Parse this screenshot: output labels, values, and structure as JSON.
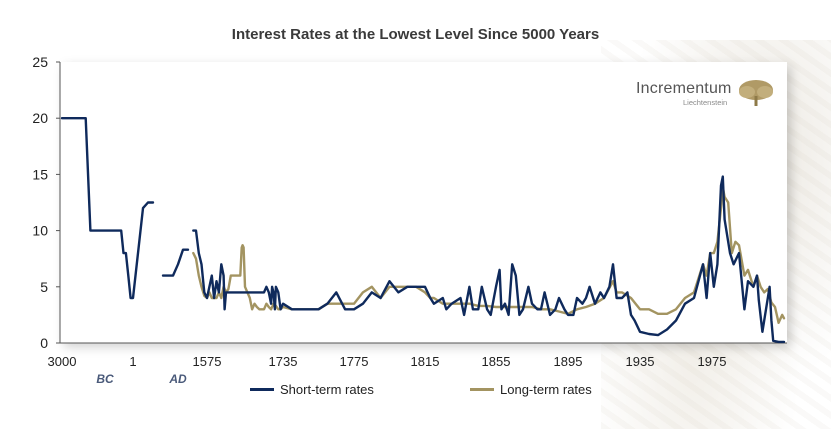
{
  "chart_data": {
    "type": "line",
    "title": "Interest Rates at the Lowest Level Since 5000 Years",
    "xlabel": "",
    "ylabel": "",
    "ylim": [
      0,
      25
    ],
    "y_ticks": [
      "0",
      "5",
      "10",
      "15",
      "20",
      "25"
    ],
    "x_tick_labels": [
      "3000",
      "1",
      "1575",
      "1735",
      "1775",
      "1815",
      "1855",
      "1895",
      "1935",
      "1975"
    ],
    "era_labels": [
      "BC",
      "AD"
    ],
    "grid": false,
    "legend_position": "bottom",
    "series": [
      {
        "name": "Short-term rates",
        "color": "#0f2a5c",
        "segments": [
          [
            [
              -3000,
              20
            ],
            [
              -2000,
              20
            ],
            [
              -1800,
              10
            ],
            [
              -500,
              10
            ],
            [
              -400,
              8
            ],
            [
              -300,
              8
            ],
            [
              -200,
              6
            ],
            [
              -100,
              4
            ],
            [
              0,
              4
            ],
            [
              50,
              8
            ],
            [
              100,
              12
            ],
            [
              150,
              12.5
            ],
            [
              200,
              12.5
            ]
          ],
          [
            [
              300,
              6
            ],
            [
              400,
              6
            ],
            [
              450,
              7
            ],
            [
              500,
              8.3
            ],
            [
              550,
              8.3
            ]
          ],
          [
            [
              1550,
              10
            ],
            [
              1555,
              10
            ],
            [
              1560,
              8
            ],
            [
              1565,
              7
            ],
            [
              1570,
              4.5
            ],
            [
              1575,
              4
            ],
            [
              1580,
              5
            ],
            [
              1585,
              6
            ],
            [
              1590,
              4
            ],
            [
              1595,
              5.5
            ],
            [
              1600,
              4.5
            ],
            [
              1605,
              7
            ],
            [
              1610,
              6
            ],
            [
              1612,
              3
            ],
            [
              1615,
              4.5
            ],
            [
              1620,
              4.5
            ],
            [
              1630,
              4.5
            ],
            [
              1640,
              4.5
            ],
            [
              1650,
              4.5
            ],
            [
              1660,
              4.5
            ],
            [
              1670,
              4.5
            ],
            [
              1680,
              4.5
            ],
            [
              1690,
              4.5
            ],
            [
              1695,
              4.5
            ],
            [
              1700,
              5
            ],
            [
              1705,
              4.5
            ],
            [
              1710,
              3.5
            ],
            [
              1712,
              5
            ],
            [
              1715,
              4.5
            ],
            [
              1718,
              3
            ],
            [
              1720,
              5
            ],
            [
              1725,
              4.5
            ],
            [
              1730,
              3
            ],
            [
              1735,
              3.5
            ],
            [
              1740,
              3
            ],
            [
              1745,
              3
            ],
            [
              1750,
              3
            ],
            [
              1755,
              3
            ],
            [
              1760,
              3.5
            ],
            [
              1765,
              4.5
            ],
            [
              1770,
              3
            ],
            [
              1775,
              3
            ],
            [
              1780,
              3.5
            ],
            [
              1785,
              4.5
            ],
            [
              1790,
              4
            ],
            [
              1795,
              5.5
            ],
            [
              1800,
              4.5
            ],
            [
              1805,
              5
            ],
            [
              1810,
              5
            ],
            [
              1815,
              5
            ],
            [
              1818,
              4
            ],
            [
              1820,
              3.5
            ],
            [
              1825,
              4
            ],
            [
              1827,
              3
            ],
            [
              1830,
              3.5
            ],
            [
              1835,
              4
            ],
            [
              1837,
              2.5
            ],
            [
              1840,
              5
            ],
            [
              1842,
              3
            ],
            [
              1845,
              3
            ],
            [
              1847,
              5
            ],
            [
              1850,
              3
            ],
            [
              1852,
              2.5
            ],
            [
              1855,
              5
            ],
            [
              1857,
              6.5
            ],
            [
              1858,
              3
            ],
            [
              1860,
              3.5
            ],
            [
              1862,
              2.5
            ],
            [
              1864,
              7
            ],
            [
              1866,
              6
            ],
            [
              1868,
              2.5
            ],
            [
              1870,
              3
            ],
            [
              1873,
              5
            ],
            [
              1875,
              3.5
            ],
            [
              1878,
              3
            ],
            [
              1880,
              3
            ],
            [
              1882,
              4.5
            ],
            [
              1885,
              2.5
            ],
            [
              1888,
              3
            ],
            [
              1890,
              4
            ],
            [
              1893,
              3
            ],
            [
              1895,
              2.5
            ],
            [
              1898,
              2.5
            ],
            [
              1900,
              4
            ],
            [
              1903,
              3.5
            ],
            [
              1905,
              4
            ],
            [
              1907,
              5
            ],
            [
              1910,
              3.5
            ],
            [
              1913,
              4.5
            ],
            [
              1915,
              4
            ],
            [
              1918,
              5
            ],
            [
              1920,
              7
            ],
            [
              1922,
              4
            ],
            [
              1925,
              4
            ],
            [
              1928,
              4.5
            ],
            [
              1930,
              2.5
            ],
            [
              1932,
              2
            ],
            [
              1935,
              1
            ],
            [
              1940,
              0.8
            ],
            [
              1945,
              0.7
            ],
            [
              1950,
              1.2
            ],
            [
              1955,
              2
            ],
            [
              1960,
              3.5
            ],
            [
              1965,
              4
            ],
            [
              1970,
              7
            ],
            [
              1972,
              4
            ],
            [
              1974,
              8
            ],
            [
              1976,
              5
            ],
            [
              1978,
              7
            ],
            [
              1980,
              14
            ],
            [
              1981,
              14.8
            ],
            [
              1982,
              11
            ],
            [
              1985,
              8
            ],
            [
              1987,
              7
            ],
            [
              1990,
              8
            ],
            [
              1993,
              3
            ],
            [
              1995,
              5.5
            ],
            [
              1998,
              5
            ],
            [
              2000,
              6
            ],
            [
              2001,
              3.8
            ],
            [
              2003,
              1
            ],
            [
              2005,
              3
            ],
            [
              2007,
              5
            ],
            [
              2008,
              2
            ],
            [
              2009,
              0.2
            ],
            [
              2012,
              0.1
            ],
            [
              2015,
              0.1
            ]
          ]
        ]
      },
      {
        "name": "Long-term rates",
        "color": "#a39461",
        "segments": [
          [
            [
              1550,
              8
            ],
            [
              1555,
              7.5
            ],
            [
              1560,
              6
            ],
            [
              1565,
              5
            ],
            [
              1570,
              4.2
            ],
            [
              1575,
              4
            ],
            [
              1580,
              4.5
            ],
            [
              1585,
              4
            ],
            [
              1590,
              4
            ],
            [
              1595,
              4
            ],
            [
              1600,
              4.5
            ],
            [
              1605,
              4
            ],
            [
              1610,
              5
            ],
            [
              1612,
              4.8
            ],
            [
              1615,
              4.5
            ],
            [
              1620,
              4.8
            ],
            [
              1625,
              6
            ],
            [
              1630,
              6
            ],
            [
              1635,
              6
            ],
            [
              1640,
              6
            ],
            [
              1645,
              6
            ],
            [
              1648,
              8.5
            ],
            [
              1650,
              8.7
            ],
            [
              1652,
              8.5
            ],
            [
              1655,
              5
            ],
            [
              1660,
              4.5
            ],
            [
              1665,
              4
            ],
            [
              1670,
              3
            ],
            [
              1675,
              3.5
            ],
            [
              1680,
              3.2
            ],
            [
              1685,
              3
            ],
            [
              1690,
              3
            ],
            [
              1695,
              3
            ],
            [
              1700,
              3.5
            ],
            [
              1705,
              3.2
            ],
            [
              1710,
              3
            ],
            [
              1715,
              3.5
            ],
            [
              1720,
              3.3
            ],
            [
              1725,
              3
            ],
            [
              1730,
              3
            ],
            [
              1735,
              3.2
            ],
            [
              1740,
              3
            ],
            [
              1745,
              3
            ],
            [
              1750,
              3
            ],
            [
              1755,
              3
            ],
            [
              1760,
              3.5
            ],
            [
              1765,
              3.5
            ],
            [
              1770,
              3.5
            ],
            [
              1775,
              3.5
            ],
            [
              1780,
              4.5
            ],
            [
              1785,
              5
            ],
            [
              1790,
              4
            ],
            [
              1795,
              5
            ],
            [
              1800,
              5
            ],
            [
              1805,
              5
            ],
            [
              1810,
              5
            ],
            [
              1815,
              4.5
            ],
            [
              1818,
              4
            ],
            [
              1820,
              4
            ],
            [
              1825,
              3.5
            ],
            [
              1830,
              3.5
            ],
            [
              1835,
              3.5
            ],
            [
              1840,
              3.5
            ],
            [
              1845,
              3.3
            ],
            [
              1850,
              3.3
            ],
            [
              1855,
              3.2
            ],
            [
              1860,
              3.2
            ],
            [
              1865,
              3.2
            ],
            [
              1870,
              3.2
            ],
            [
              1875,
              3.2
            ],
            [
              1880,
              3
            ],
            [
              1885,
              3
            ],
            [
              1890,
              2.8
            ],
            [
              1895,
              2.6
            ],
            [
              1900,
              3
            ],
            [
              1905,
              3.2
            ],
            [
              1910,
              3.5
            ],
            [
              1915,
              4
            ],
            [
              1920,
              5.5
            ],
            [
              1922,
              4.5
            ],
            [
              1925,
              4.5
            ],
            [
              1930,
              4
            ],
            [
              1935,
              3
            ],
            [
              1940,
              3
            ],
            [
              1945,
              2.6
            ],
            [
              1950,
              2.6
            ],
            [
              1955,
              3
            ],
            [
              1960,
              4
            ],
            [
              1965,
              4.5
            ],
            [
              1970,
              7
            ],
            [
              1972,
              6
            ],
            [
              1974,
              8
            ],
            [
              1976,
              8
            ],
            [
              1978,
              9
            ],
            [
              1980,
              12
            ],
            [
              1981,
              13.9
            ],
            [
              1982,
              13
            ],
            [
              1984,
              12.5
            ],
            [
              1986,
              8
            ],
            [
              1988,
              9
            ],
            [
              1990,
              8.7
            ],
            [
              1993,
              6
            ],
            [
              1995,
              6.5
            ],
            [
              1998,
              5
            ],
            [
              2000,
              6
            ],
            [
              2002,
              5
            ],
            [
              2004,
              4.5
            ],
            [
              2006,
              4.8
            ],
            [
              2008,
              3.6
            ],
            [
              2010,
              3.2
            ],
            [
              2012,
              1.8
            ],
            [
              2014,
              2.5
            ],
            [
              2015,
              2.2
            ]
          ]
        ]
      }
    ]
  },
  "logo": {
    "word": "Incrementum",
    "sub": "Liechtenstein",
    "tree_color": "#b09a66"
  },
  "legend": {
    "short": "Short-term rates",
    "long": "Long-term rates"
  }
}
